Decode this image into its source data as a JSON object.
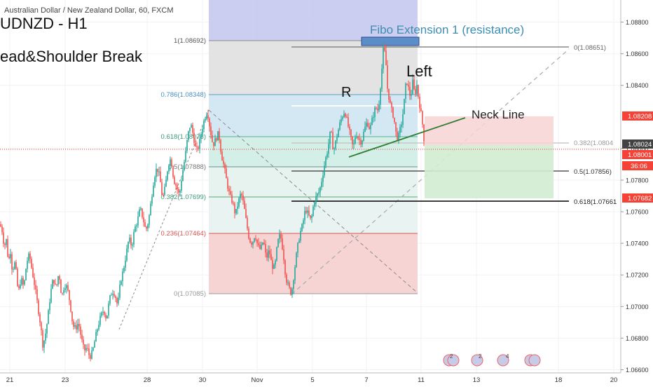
{
  "header": {
    "symbol_line": "Australian Dollar / New Zealand Dollar, 60, FXCM",
    "title": "UDNZD - H1",
    "subtitle": "ead&Shoulder Break"
  },
  "annotations": {
    "fibo_ext_label": "Fibo Extension 1 (resistance)",
    "neck_line_label": "Neck Line",
    "left_label": "Left",
    "r_label": "R"
  },
  "colors": {
    "up_candle": "#26a69a",
    "down_candle": "#ef5350",
    "price_line": "#e53935",
    "fib_blue": "#5a9cc7",
    "neck_line": "#2e7d32",
    "target_green": "#4caf50",
    "stop_red": "#e57373"
  },
  "axis": {
    "price_ticks": [
      "1.08800",
      "1.08600",
      "1.08400",
      "1.08000",
      "1.07800",
      "1.07600",
      "1.07400",
      "1.07200",
      "1.07000",
      "1.06800",
      "1.06600"
    ],
    "price_badges": {
      "stop": "1.08208",
      "mid": "1.08024",
      "current": "1.08001",
      "countdown": "36:06",
      "target": "1.07682"
    },
    "time_ticks": [
      "21",
      "23",
      "28",
      "30",
      "Nov",
      "5",
      "7",
      "11",
      "13",
      "18",
      "20"
    ]
  },
  "chart_data": {
    "type": "candlestick",
    "title": "",
    "ylabel": "",
    "ylim": [
      1.0658,
      1.0894
    ],
    "fib_retracement_labels": [
      {
        "label": "1(1.08692)",
        "value": 1.08692
      },
      {
        "label": "0.786(1.08348)",
        "value": 1.08348
      },
      {
        "label": "0.618(1.08078)",
        "value": 1.08078
      },
      {
        "label": "0.5(1.07888)",
        "value": 1.07888
      },
      {
        "label": "0.382(1.07699)",
        "value": 1.07699
      },
      {
        "label": "0.236(1.07464)",
        "value": 1.07464
      },
      {
        "label": "0(1.07085)",
        "value": 1.07085
      }
    ],
    "fib_extension_labels": [
      {
        "label": "0(1.08651)",
        "value": 1.08651
      },
      {
        "label": "0.382(1.0804",
        "value": 1.0804
      },
      {
        "label": "0.5(1.07856)",
        "value": 1.07856
      },
      {
        "label": "0.618(1.07661",
        "value": 1.07661
      }
    ],
    "current_price": 1.08001,
    "stop_loss": 1.08208,
    "take_profit": 1.07682,
    "close_path": [
      [
        0,
        1.0752
      ],
      [
        3,
        1.0748
      ],
      [
        6,
        1.0738
      ],
      [
        9,
        1.0742
      ],
      [
        12,
        1.0728
      ],
      [
        15,
        1.0735
      ],
      [
        18,
        1.072
      ],
      [
        20,
        1.073
      ],
      [
        23,
        1.0722
      ],
      [
        26,
        1.0708
      ],
      [
        30,
        1.0718
      ],
      [
        34,
        1.0712
      ],
      [
        38,
        1.0728
      ],
      [
        42,
        1.0733
      ],
      [
        46,
        1.0722
      ],
      [
        50,
        1.0712
      ],
      [
        54,
        1.07
      ],
      [
        58,
        1.0688
      ],
      [
        61,
        1.0676
      ],
      [
        64,
        1.068
      ],
      [
        68,
        1.0692
      ],
      [
        72,
        1.0708
      ],
      [
        76,
        1.0718
      ],
      [
        80,
        1.0711
      ],
      [
        84,
        1.0722
      ],
      [
        88,
        1.0706
      ],
      [
        92,
        1.0714
      ],
      [
        96,
        1.0712
      ],
      [
        100,
        1.0702
      ],
      [
        104,
        1.0688
      ],
      [
        108,
        1.0686
      ],
      [
        112,
        1.069
      ],
      [
        116,
        1.068
      ],
      [
        120,
        1.0672
      ],
      [
        124,
        1.0674
      ],
      [
        128,
        1.0668
      ],
      [
        132,
        1.0671
      ],
      [
        136,
        1.068
      ],
      [
        140,
        1.0688
      ],
      [
        144,
        1.0694
      ],
      [
        148,
        1.0698
      ],
      [
        152,
        1.0692
      ],
      [
        156,
        1.0704
      ],
      [
        160,
        1.071
      ],
      [
        164,
        1.0708
      ],
      [
        168,
        1.07
      ],
      [
        172,
        1.0716
      ],
      [
        176,
        1.0723
      ],
      [
        180,
        1.0733
      ],
      [
        184,
        1.0743
      ],
      [
        188,
        1.0738
      ],
      [
        192,
        1.0749
      ],
      [
        196,
        1.0754
      ],
      [
        200,
        1.0762
      ],
      [
        204,
        1.0756
      ],
      [
        208,
        1.0748
      ],
      [
        212,
        1.0754
      ],
      [
        216,
        1.0768
      ],
      [
        220,
        1.0782
      ],
      [
        224,
        1.0788
      ],
      [
        228,
        1.0782
      ],
      [
        232,
        1.0768
      ],
      [
        236,
        1.0776
      ],
      [
        240,
        1.079
      ],
      [
        244,
        1.0794
      ],
      [
        248,
        1.078
      ],
      [
        252,
        1.0776
      ],
      [
        256,
        1.077
      ],
      [
        260,
        1.0784
      ],
      [
        264,
        1.0794
      ],
      [
        268,
        1.0808
      ],
      [
        272,
        1.0816
      ],
      [
        276,
        1.0808
      ],
      [
        280,
        1.0798
      ],
      [
        284,
        1.0802
      ],
      [
        288,
        1.0812
      ],
      [
        292,
        1.0819
      ],
      [
        296,
        1.0824
      ],
      [
        300,
        1.0812
      ],
      [
        304,
        1.0802
      ],
      [
        308,
        1.0806
      ],
      [
        312,
        1.081
      ],
      [
        316,
        1.0796
      ],
      [
        320,
        1.0788
      ],
      [
        324,
        1.0778
      ],
      [
        328,
        1.077
      ],
      [
        332,
        1.0766
      ],
      [
        336,
        1.0758
      ],
      [
        340,
        1.0766
      ],
      [
        344,
        1.0772
      ],
      [
        348,
        1.0764
      ],
      [
        352,
        1.0752
      ],
      [
        356,
        1.0742
      ],
      [
        360,
        1.074
      ],
      [
        364,
        1.0746
      ],
      [
        368,
        1.0738
      ],
      [
        372,
        1.0736
      ],
      [
        376,
        1.0742
      ],
      [
        380,
        1.073
      ],
      [
        384,
        1.0736
      ],
      [
        388,
        1.0726
      ],
      [
        392,
        1.0724
      ],
      [
        396,
        1.074
      ],
      [
        400,
        1.0746
      ],
      [
        404,
        1.0735
      ],
      [
        408,
        1.0718
      ],
      [
        412,
        1.0712
      ],
      [
        416,
        1.0708
      ],
      [
        420,
        1.0722
      ],
      [
        424,
        1.0736
      ],
      [
        428,
        1.0746
      ],
      [
        432,
        1.0752
      ],
      [
        436,
        1.0762
      ],
      [
        440,
        1.0758
      ],
      [
        444,
        1.0754
      ],
      [
        448,
        1.0766
      ],
      [
        452,
        1.077
      ],
      [
        456,
        1.0773
      ],
      [
        460,
        1.0782
      ],
      [
        464,
        1.0792
      ],
      [
        468,
        1.08
      ],
      [
        472,
        1.0812
      ],
      [
        476,
        1.0798
      ],
      [
        480,
        1.0806
      ],
      [
        484,
        1.0814
      ],
      [
        488,
        1.082
      ],
      [
        492,
        1.0824
      ],
      [
        496,
        1.0816
      ],
      [
        500,
        1.0808
      ],
      [
        504,
        1.08
      ],
      [
        508,
        1.081
      ],
      [
        512,
        1.0806
      ],
      [
        516,
        1.0804
      ],
      [
        520,
        1.0812
      ],
      [
        524,
        1.0817
      ],
      [
        528,
        1.0812
      ],
      [
        532,
        1.082
      ],
      [
        536,
        1.0826
      ],
      [
        540,
        1.0824
      ],
      [
        544,
        1.0845
      ],
      [
        547,
        1.0862
      ],
      [
        550,
        1.086
      ],
      [
        553,
        1.0838
      ],
      [
        556,
        1.083
      ],
      [
        559,
        1.0824
      ],
      [
        562,
        1.082
      ],
      [
        565,
        1.081
      ],
      [
        568,
        1.0806
      ],
      [
        571,
        1.0812
      ],
      [
        574,
        1.0818
      ],
      [
        577,
        1.083
      ],
      [
        580,
        1.0844
      ],
      [
        583,
        1.0838
      ],
      [
        586,
        1.0832
      ],
      [
        589,
        1.0842
      ],
      [
        592,
        1.0834
      ],
      [
        595,
        1.084
      ],
      [
        598,
        1.083
      ],
      [
        601,
        1.0822
      ],
      [
        604,
        1.0812
      ],
      [
        606,
        1.08
      ]
    ]
  }
}
